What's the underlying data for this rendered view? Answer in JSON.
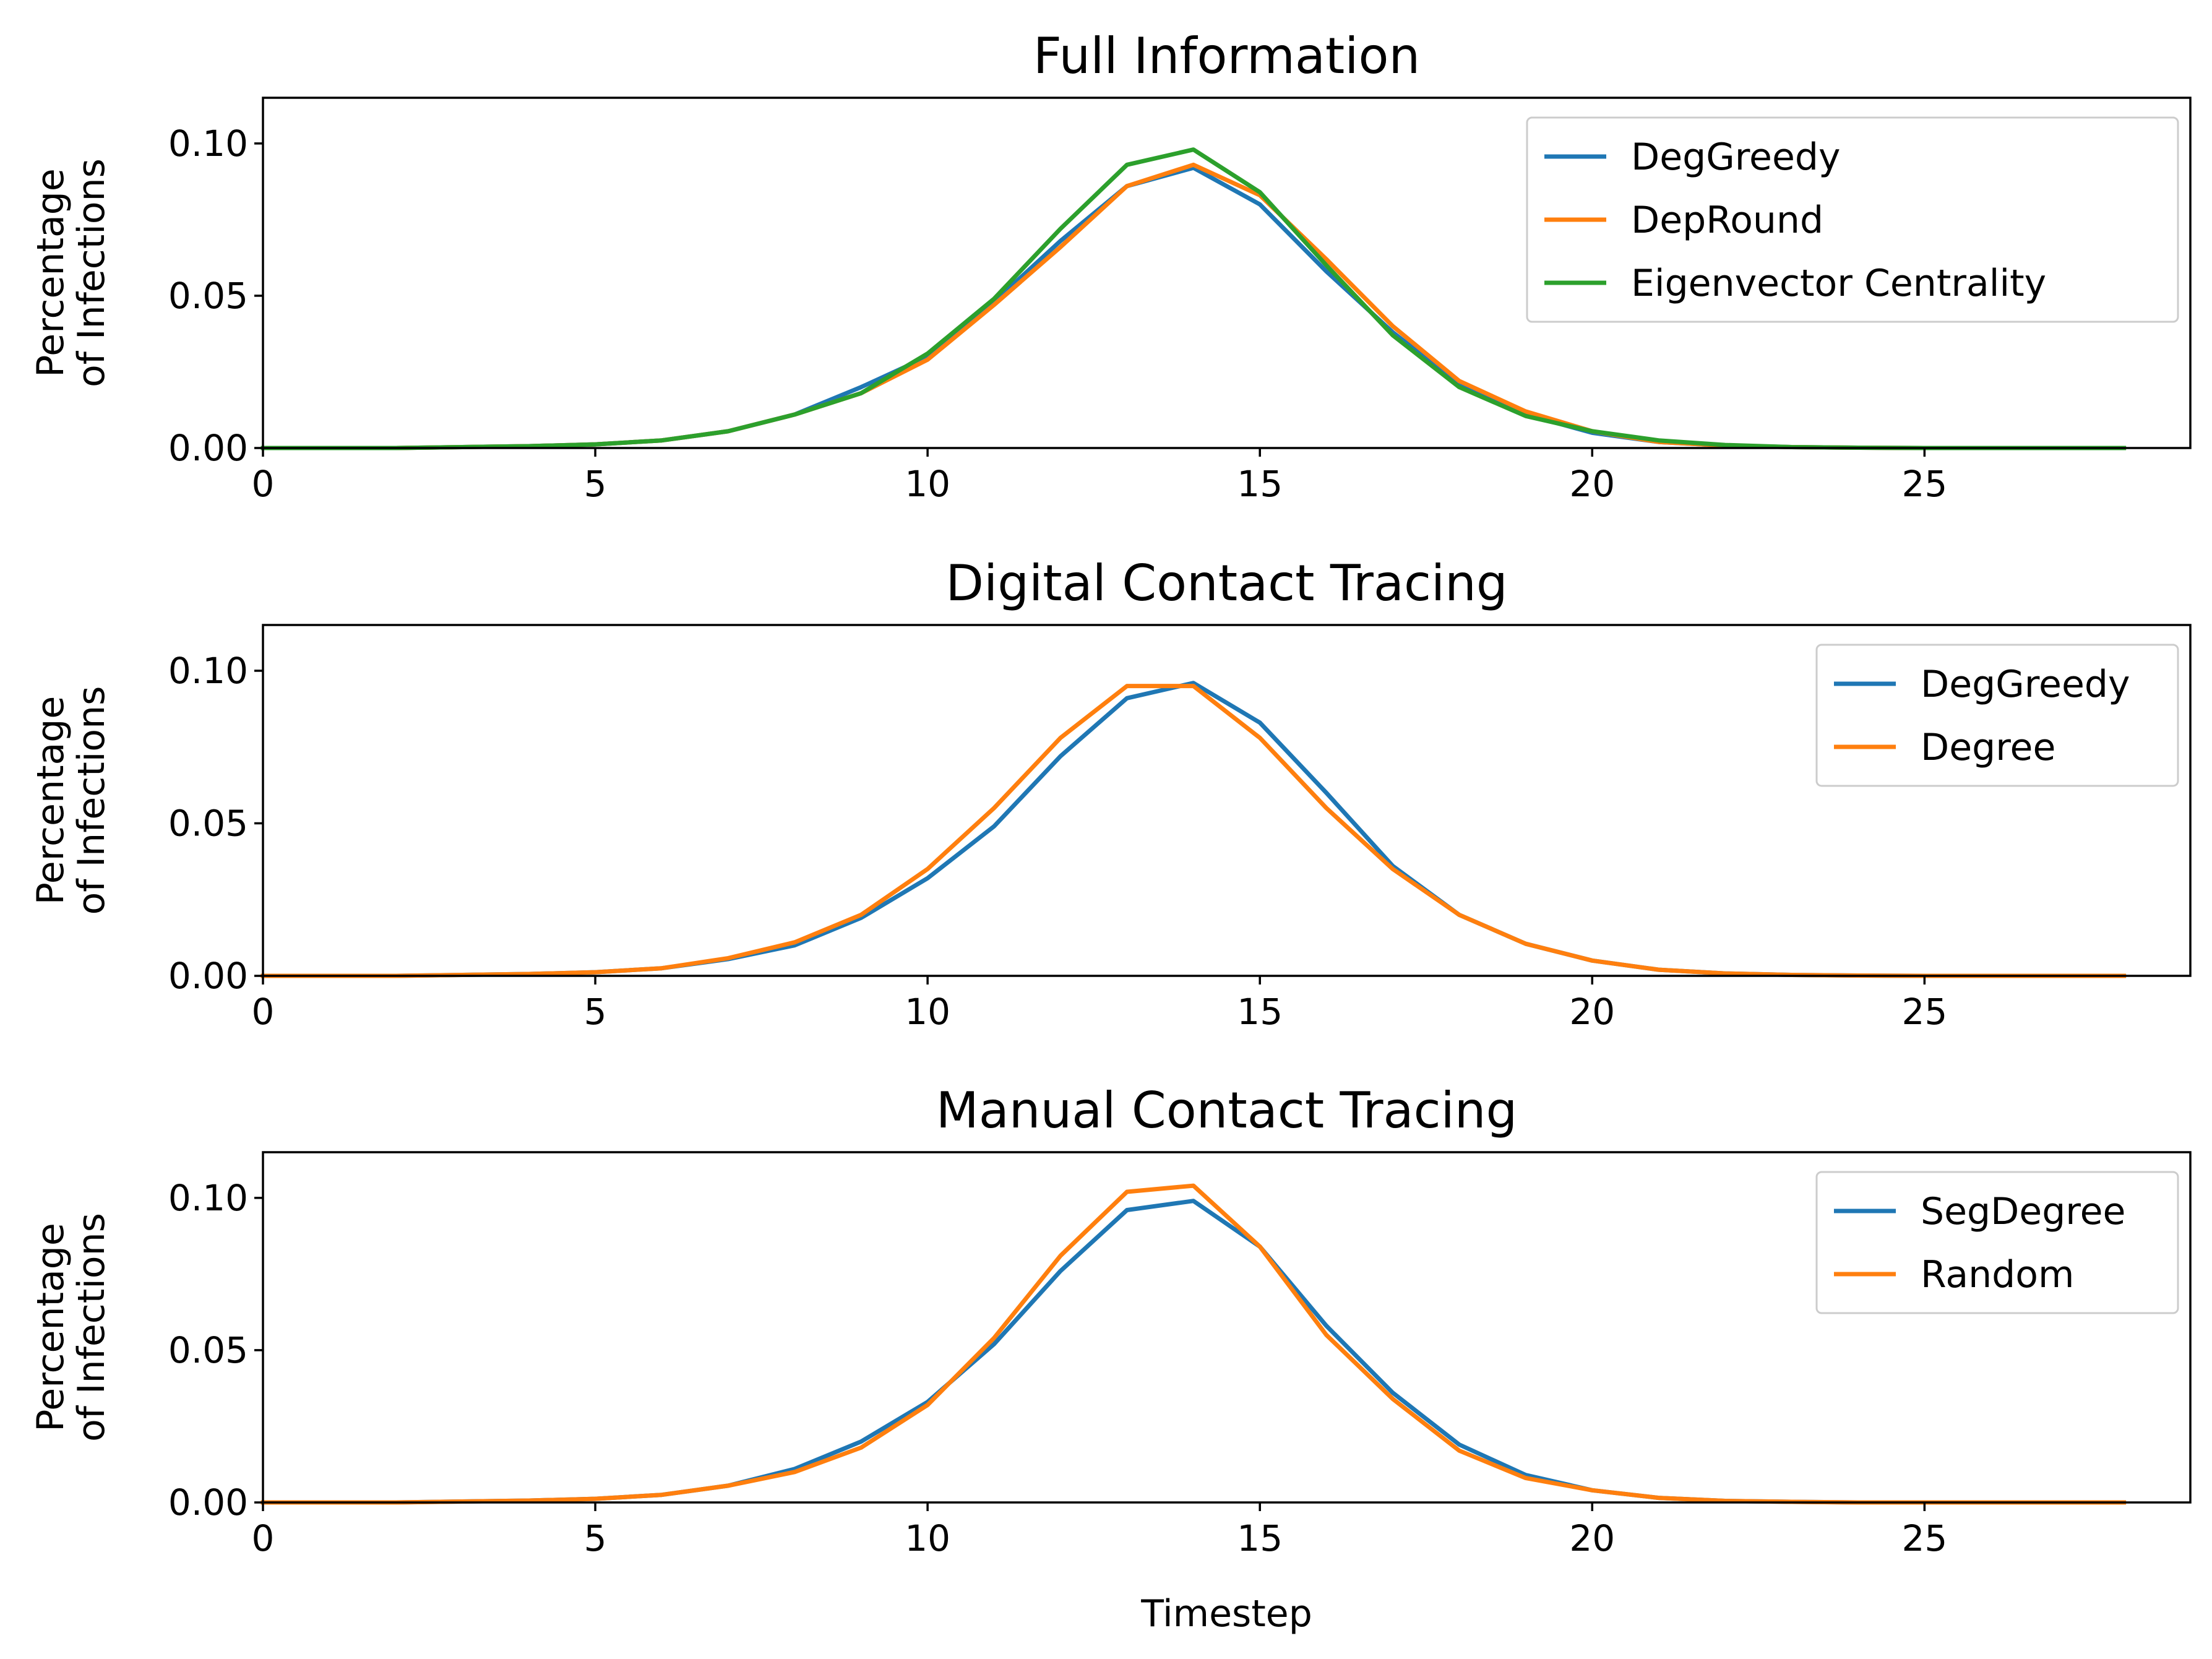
{
  "chart_data": [
    {
      "type": "line",
      "title": "Full Information",
      "xlabel": "",
      "ylabel": [
        "Percentage",
        "of Infections"
      ],
      "xlim": [
        0,
        29
      ],
      "ylim": [
        0,
        0.115
      ],
      "xticks": [
        0,
        5,
        10,
        15,
        20,
        25
      ],
      "xtick_labels": [
        "0",
        "5",
        "10",
        "15",
        "20",
        "25"
      ],
      "yticks": [
        0,
        0.05,
        0.1
      ],
      "ytick_labels": [
        "0.00",
        "0.05",
        "0.10"
      ],
      "legend_position": "upper right",
      "x": [
        0,
        1,
        2,
        3,
        4,
        5,
        6,
        7,
        8,
        9,
        10,
        11,
        12,
        13,
        14,
        15,
        16,
        17,
        18,
        19,
        20,
        21,
        22,
        23,
        24,
        25,
        26,
        27,
        28
      ],
      "series": [
        {
          "name": "DegGreedy",
          "color": "#1f77b4",
          "values": [
            0,
            0,
            0,
            0.0003,
            0.0006,
            0.0012,
            0.0025,
            0.0055,
            0.011,
            0.02,
            0.03,
            0.048,
            0.068,
            0.086,
            0.092,
            0.08,
            0.058,
            0.038,
            0.021,
            0.011,
            0.005,
            0.002,
            0.0008,
            0.0003,
            0.0001,
            0,
            0,
            0,
            0
          ]
        },
        {
          "name": "DepRound",
          "color": "#ff7f0e",
          "values": [
            0,
            0,
            0,
            0.0003,
            0.0006,
            0.0012,
            0.0025,
            0.0055,
            0.011,
            0.018,
            0.029,
            0.047,
            0.066,
            0.086,
            0.093,
            0.083,
            0.062,
            0.04,
            0.022,
            0.012,
            0.0055,
            0.002,
            0.0008,
            0.0003,
            0.0001,
            0,
            0,
            0,
            0
          ]
        },
        {
          "name": "Eigenvector Centrality",
          "color": "#2ca02c",
          "values": [
            0,
            0,
            0,
            0.0003,
            0.0006,
            0.0012,
            0.0025,
            0.0055,
            0.011,
            0.018,
            0.031,
            0.049,
            0.072,
            0.093,
            0.098,
            0.084,
            0.06,
            0.037,
            0.02,
            0.0105,
            0.0055,
            0.0025,
            0.001,
            0.0003,
            0.0001,
            0,
            0,
            0,
            0
          ]
        }
      ]
    },
    {
      "type": "line",
      "title": "Digital Contact Tracing",
      "xlabel": "",
      "ylabel": [
        "Percentage",
        "of Infections"
      ],
      "xlim": [
        0,
        29
      ],
      "ylim": [
        0,
        0.115
      ],
      "xticks": [
        0,
        5,
        10,
        15,
        20,
        25
      ],
      "xtick_labels": [
        "0",
        "5",
        "10",
        "15",
        "20",
        "25"
      ],
      "yticks": [
        0,
        0.05,
        0.1
      ],
      "ytick_labels": [
        "0.00",
        "0.05",
        "0.10"
      ],
      "legend_position": "upper right",
      "x": [
        0,
        1,
        2,
        3,
        4,
        5,
        6,
        7,
        8,
        9,
        10,
        11,
        12,
        13,
        14,
        15,
        16,
        17,
        18,
        19,
        20,
        21,
        22,
        23,
        24,
        25,
        26,
        27,
        28
      ],
      "series": [
        {
          "name": "DegGreedy",
          "color": "#1f77b4",
          "values": [
            0,
            0,
            0,
            0.0003,
            0.0006,
            0.0012,
            0.0025,
            0.0055,
            0.01,
            0.019,
            0.032,
            0.049,
            0.072,
            0.091,
            0.096,
            0.083,
            0.06,
            0.036,
            0.02,
            0.0105,
            0.005,
            0.002,
            0.0008,
            0.0003,
            0.0001,
            0,
            0,
            0,
            0
          ]
        },
        {
          "name": "Degree",
          "color": "#ff7f0e",
          "values": [
            0,
            0,
            0,
            0.0003,
            0.0006,
            0.0012,
            0.0025,
            0.0058,
            0.011,
            0.02,
            0.035,
            0.055,
            0.078,
            0.095,
            0.095,
            0.078,
            0.055,
            0.035,
            0.02,
            0.0105,
            0.005,
            0.002,
            0.0008,
            0.0003,
            0.0001,
            0,
            0,
            0,
            0
          ]
        }
      ]
    },
    {
      "type": "line",
      "title": "Manual Contact Tracing",
      "xlabel": "Timestep",
      "ylabel": [
        "Percentage",
        "of Infections"
      ],
      "xlim": [
        0,
        29
      ],
      "ylim": [
        0,
        0.115
      ],
      "xticks": [
        0,
        5,
        10,
        15,
        20,
        25
      ],
      "xtick_labels": [
        "0",
        "5",
        "10",
        "15",
        "20",
        "25"
      ],
      "yticks": [
        0,
        0.05,
        0.1
      ],
      "ytick_labels": [
        "0.00",
        "0.05",
        "0.10"
      ],
      "legend_position": "upper right",
      "x": [
        0,
        1,
        2,
        3,
        4,
        5,
        6,
        7,
        8,
        9,
        10,
        11,
        12,
        13,
        14,
        15,
        16,
        17,
        18,
        19,
        20,
        21,
        22,
        23,
        24,
        25,
        26,
        27,
        28
      ],
      "series": [
        {
          "name": "SegDegree",
          "color": "#1f77b4",
          "values": [
            0,
            0,
            0,
            0.0003,
            0.0006,
            0.0012,
            0.0025,
            0.0055,
            0.011,
            0.02,
            0.033,
            0.052,
            0.076,
            0.096,
            0.099,
            0.084,
            0.058,
            0.036,
            0.019,
            0.009,
            0.004,
            0.0015,
            0.0005,
            0.0002,
            0,
            0,
            0,
            0,
            0
          ]
        },
        {
          "name": "Random",
          "color": "#ff7f0e",
          "values": [
            0,
            0,
            0,
            0.0003,
            0.0006,
            0.0012,
            0.0025,
            0.0055,
            0.01,
            0.018,
            0.032,
            0.054,
            0.081,
            0.102,
            0.104,
            0.084,
            0.055,
            0.034,
            0.017,
            0.008,
            0.004,
            0.0015,
            0.0005,
            0.0002,
            0,
            0,
            0,
            0,
            0
          ]
        }
      ]
    }
  ]
}
